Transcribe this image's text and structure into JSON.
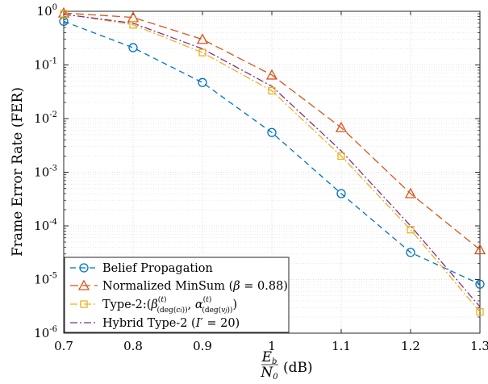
{
  "chart_data": {
    "type": "line",
    "xlabel_html": {
      "num": "E",
      "num_sub": "b",
      "den": "N",
      "den_sub": "0",
      "unit": "(dB)"
    },
    "ylabel": "Frame Error Rate (FER)",
    "xlim": [
      0.7,
      1.3
    ],
    "ylim": [
      1e-06,
      1
    ],
    "yscale": "log",
    "grid": true,
    "legend_position": "bottom-left",
    "x_ticks": [
      "0.7",
      "0.8",
      "0.9",
      "1",
      "1.1",
      "1.2",
      "1.3"
    ],
    "y_ticks": [
      {
        "base": "10",
        "exp": "-6"
      },
      {
        "base": "10",
        "exp": "-5"
      },
      {
        "base": "10",
        "exp": "-4"
      },
      {
        "base": "10",
        "exp": "-3"
      },
      {
        "base": "10",
        "exp": "-2"
      },
      {
        "base": "10",
        "exp": "-1"
      },
      {
        "base": "10",
        "exp": "0"
      }
    ],
    "series": [
      {
        "name": "Belief Propagation",
        "color": "#0072BD",
        "dash": "7,5",
        "marker": "circle",
        "x": [
          0.7,
          0.8,
          0.9,
          1.0,
          1.1,
          1.2,
          1.3
        ],
        "y": [
          0.65,
          0.21,
          0.047,
          0.0055,
          0.0004,
          3.2e-05,
          8.2e-06
        ]
      },
      {
        "name": "Normalized MinSum (β = 0.88)",
        "color": "#D95319",
        "dash": "10,5",
        "marker": "triangle",
        "x": [
          0.7,
          0.8,
          0.9,
          1.0,
          1.1,
          1.2,
          1.3
        ],
        "y": [
          0.93,
          0.77,
          0.3,
          0.065,
          0.0068,
          0.0004,
          3.6e-05
        ]
      },
      {
        "name": "Type-2:(β(t)(deg(ci)), α(t)(deg(vj)))",
        "color": "#EDB120",
        "dash": "9,3,2,3",
        "marker": "square",
        "x": [
          0.7,
          0.8,
          0.9,
          1.0,
          1.1,
          1.2,
          1.3
        ],
        "y": [
          0.9,
          0.56,
          0.17,
          0.033,
          0.002,
          8.5e-05,
          2.5e-06
        ]
      },
      {
        "name": "Hybrid Type-2 (I′ = 20)",
        "color": "#7E2F8E",
        "dash": "9,3,2,3",
        "marker": "none",
        "x": [
          0.7,
          0.8,
          0.9,
          1.0,
          1.1,
          1.2,
          1.3
        ],
        "y": [
          0.88,
          0.6,
          0.2,
          0.04,
          0.0025,
          0.0001,
          3.1e-06
        ]
      }
    ]
  }
}
